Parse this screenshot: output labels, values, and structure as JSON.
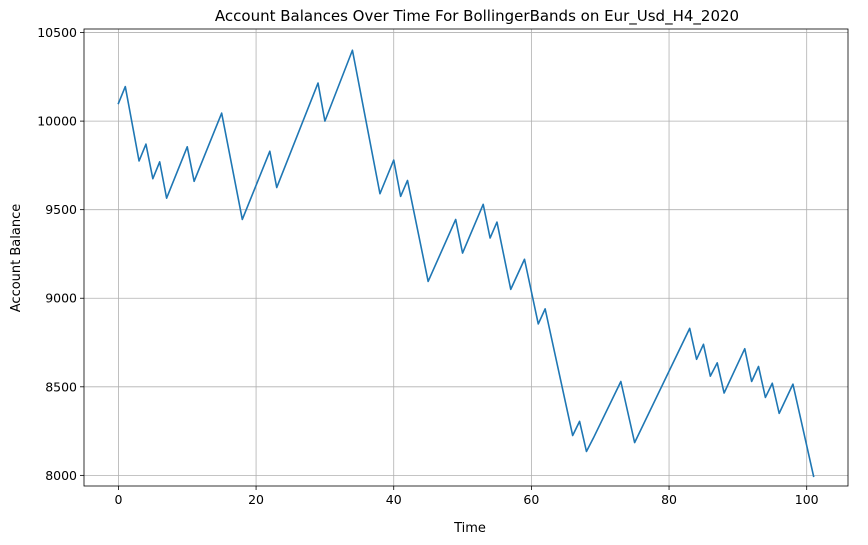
{
  "chart_data": {
    "type": "line",
    "title": "Account Balances Over Time For BollingerBands on Eur_Usd_H4_2020",
    "xlabel": "Time",
    "ylabel": "Account Balance",
    "xlim": [
      -5,
      106
    ],
    "ylim": [
      7940,
      10520
    ],
    "xticks": [
      0,
      20,
      40,
      60,
      80,
      100
    ],
    "yticks": [
      8000,
      8500,
      9000,
      9500,
      10000,
      10500
    ],
    "grid": true,
    "line_color": "#1f77b4",
    "series": [
      {
        "x": [
          0,
          1,
          3,
          4,
          5,
          6,
          7,
          10,
          11,
          15,
          18,
          22,
          23,
          29,
          30,
          34,
          38,
          40,
          41,
          42,
          45,
          49,
          50,
          53,
          54,
          55,
          57,
          59,
          61,
          62,
          66,
          67,
          68,
          69,
          73,
          75,
          83,
          84,
          85,
          86,
          87,
          88,
          91,
          92,
          93,
          94,
          95,
          96,
          98,
          101
        ],
        "values": [
          10100,
          10195,
          9775,
          9870,
          9675,
          9770,
          9565,
          9855,
          9660,
          10045,
          9445,
          9830,
          9625,
          10215,
          10000,
          10400,
          9590,
          9780,
          9575,
          9665,
          9095,
          9445,
          9255,
          9530,
          9340,
          9430,
          9050,
          9220,
          8855,
          8940,
          8225,
          8305,
          8135,
          8210,
          8530,
          8185,
          8830,
          8655,
          8740,
          8560,
          8635,
          8465,
          8715,
          8530,
          8615,
          8440,
          8520,
          8350,
          8515,
          7995
        ]
      }
    ]
  }
}
